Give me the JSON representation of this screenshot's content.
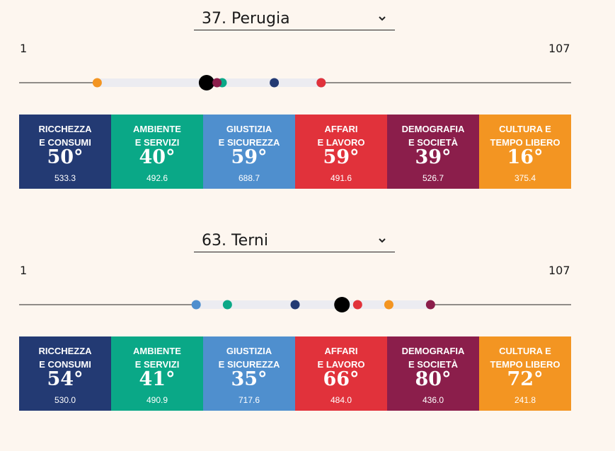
{
  "range": {
    "min": "1",
    "max": "107",
    "min_value": 1,
    "max_value": 107
  },
  "cities": [
    {
      "selected": "37. Perugia",
      "overall_rank": 37,
      "category_ranks": [
        50,
        40,
        59,
        59,
        39,
        16
      ],
      "categories": [
        {
          "line1": "RICCHEZZA",
          "line2": "E CONSUMI",
          "rank": "50°",
          "score": "533.3",
          "color": "#233a73"
        },
        {
          "line1": "AMBIENTE",
          "line2": "E SERVIZI",
          "rank": "40°",
          "score": "492.6",
          "color": "#0aa887"
        },
        {
          "line1": "GIUSTIZIA",
          "line2": "E SICUREZZA",
          "rank": "59°",
          "score": "688.7",
          "color": "#4f8fce"
        },
        {
          "line1": "AFFARI",
          "line2": "E LAVORO",
          "rank": "59°",
          "score": "491.6",
          "color": "#e1323b"
        },
        {
          "line1": "DEMOGRAFIA",
          "line2": "E SOCIETÀ",
          "rank": "39°",
          "score": "526.7",
          "color": "#8b1e4b"
        },
        {
          "line1": "CULTURA E",
          "line2": "TEMPO LIBERO",
          "rank": "16°",
          "score": "375.4",
          "color": "#f39522"
        }
      ]
    },
    {
      "selected": "63. Terni",
      "overall_rank": 63,
      "category_ranks": [
        54,
        41,
        35,
        66,
        80,
        72
      ],
      "categories": [
        {
          "line1": "RICCHEZZA",
          "line2": "E CONSUMI",
          "rank": "54°",
          "score": "530.0",
          "color": "#233a73"
        },
        {
          "line1": "AMBIENTE",
          "line2": "E SERVIZI",
          "rank": "41°",
          "score": "490.9",
          "color": "#0aa887"
        },
        {
          "line1": "GIUSTIZIA",
          "line2": "E SICUREZZA",
          "rank": "35°",
          "score": "717.6",
          "color": "#4f8fce"
        },
        {
          "line1": "AFFARI",
          "line2": "E LAVORO",
          "rank": "66°",
          "score": "484.0",
          "color": "#e1323b"
        },
        {
          "line1": "DEMOGRAFIA",
          "line2": "E SOCIETÀ",
          "rank": "80°",
          "score": "436.0",
          "color": "#8b1e4b"
        },
        {
          "line1": "CULTURA E",
          "line2": "TEMPO LIBERO",
          "rank": "72°",
          "score": "241.8",
          "color": "#f39522"
        }
      ]
    }
  ],
  "icons": {
    "select": "chevron-down-icon"
  },
  "colors": {
    "background": "#fdf6ef",
    "overall_dot": "#000000",
    "track_band": "#ececf1"
  }
}
